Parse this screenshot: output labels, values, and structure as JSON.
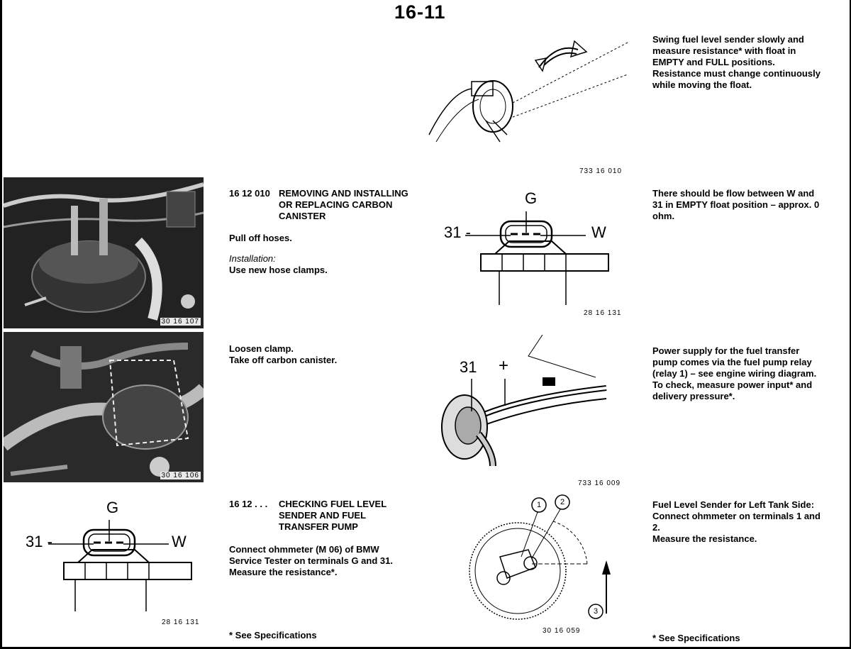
{
  "page": {
    "number": "16-11"
  },
  "left_column": {
    "photo1": {
      "caption": "30 16 107"
    },
    "photo2": {
      "caption": "30 16 106"
    },
    "diagram": {
      "label_g": "G",
      "label_31": "31 -",
      "label_w": "W",
      "caption": "28 16 131"
    }
  },
  "middle_column": {
    "section1": {
      "number": "16 12 010",
      "title": "REMOVING AND INSTALLING\nOR REPLACING CARBON\nCANISTER",
      "step1": "Pull off hoses.",
      "installation_label": "Installation:",
      "step2": "Use new hose clamps.",
      "step3": "Loosen clamp.\nTake off carbon canister."
    },
    "section2": {
      "number": "16 12 . . .",
      "title": "CHECKING FUEL LEVEL\nSENDER AND FUEL\nTRANSFER PUMP",
      "step1": "Connect ohmmeter (M 06) of BMW\nService Tester on terminals G and 31.\nMeasure the resistance*.",
      "footnote": "* See Specifications"
    }
  },
  "center_figures": {
    "fig_sender": {
      "caption": "733 16 010"
    },
    "fig_connector": {
      "label_g": "G",
      "label_31": "31 -",
      "label_w": "W",
      "caption": "28 16 131"
    },
    "fig_pump": {
      "label_31": "31",
      "label_plus": "+",
      "caption": "733 16 009"
    },
    "fig_tank": {
      "label_1": "1",
      "label_2": "2",
      "label_3": "3",
      "caption": "30 16 059"
    }
  },
  "right_column": {
    "text1": "Swing fuel level sender slowly and\nmeasure resistance* with float in\nEMPTY and FULL positions.\nResistance must change continuously\nwhile moving the float.",
    "text2": "There should be flow between W and\n31 in EMPTY float position – approx. 0\nohm.",
    "text3": "Power supply for the fuel transfer\npump comes via the fuel pump relay\n(relay 1) – see engine wiring diagram.\nTo check, measure power input* and\ndelivery pressure*.",
    "text4": "Fuel Level Sender for Left Tank Side:\nConnect ohmmeter on terminals 1 and\n2.\nMeasure the resistance.",
    "footnote": "* See Specifications"
  }
}
